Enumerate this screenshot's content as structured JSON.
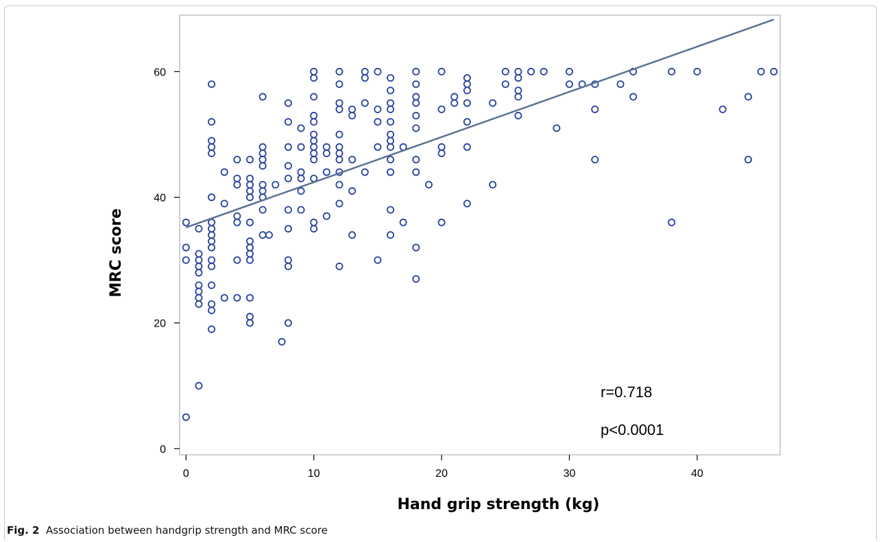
{
  "caption": {
    "label": "Fig. 2",
    "text": "Association between handgrip strength and MRC score"
  },
  "colors": {
    "points": "#2540a0",
    "fit_line": "#5a7194",
    "axis": "#000000",
    "frame": "#c0c0c0"
  },
  "chart_data": {
    "type": "scatter",
    "title": "",
    "xlabel": "Hand grip strength (kg)",
    "ylabel": "MRC score",
    "xlim": [
      -0.5,
      46.5
    ],
    "ylim": [
      -1,
      69
    ],
    "xticks": [
      0,
      10,
      20,
      30,
      40
    ],
    "yticks": [
      0,
      20,
      40,
      60
    ],
    "grid": false,
    "annotations": [
      "r=0.718",
      "p<0.0001"
    ],
    "fit_line": {
      "x": [
        0,
        46
      ],
      "y": [
        35.2,
        68.3
      ]
    },
    "points": [
      [
        0,
        36
      ],
      [
        0,
        32
      ],
      [
        0,
        30
      ],
      [
        0,
        5
      ],
      [
        1,
        35
      ],
      [
        1,
        31
      ],
      [
        1,
        30
      ],
      [
        1,
        29
      ],
      [
        1,
        28
      ],
      [
        1,
        26
      ],
      [
        1,
        25
      ],
      [
        1,
        24
      ],
      [
        1,
        23
      ],
      [
        1,
        10
      ],
      [
        2,
        58
      ],
      [
        2,
        52
      ],
      [
        2,
        49
      ],
      [
        2,
        48
      ],
      [
        2,
        47
      ],
      [
        2,
        40
      ],
      [
        2,
        36
      ],
      [
        2,
        35
      ],
      [
        2,
        34
      ],
      [
        2,
        33
      ],
      [
        2,
        32
      ],
      [
        2,
        30
      ],
      [
        2,
        29
      ],
      [
        2,
        26
      ],
      [
        2,
        23
      ],
      [
        2,
        22
      ],
      [
        2,
        19
      ],
      [
        3,
        44
      ],
      [
        3,
        39
      ],
      [
        3,
        24
      ],
      [
        4,
        46
      ],
      [
        4,
        43
      ],
      [
        4,
        42
      ],
      [
        4,
        37
      ],
      [
        4,
        36
      ],
      [
        4,
        30
      ],
      [
        4,
        24
      ],
      [
        5,
        46
      ],
      [
        5,
        43
      ],
      [
        5,
        42
      ],
      [
        5,
        41
      ],
      [
        5,
        40
      ],
      [
        5,
        36
      ],
      [
        5,
        33
      ],
      [
        5,
        32
      ],
      [
        5,
        31
      ],
      [
        5,
        30
      ],
      [
        5,
        24
      ],
      [
        5,
        21
      ],
      [
        5,
        20
      ],
      [
        6,
        56
      ],
      [
        6,
        48
      ],
      [
        6,
        47
      ],
      [
        6,
        46
      ],
      [
        6,
        45
      ],
      [
        6,
        42
      ],
      [
        6,
        41
      ],
      [
        6,
        40
      ],
      [
        6,
        38
      ],
      [
        6,
        34
      ],
      [
        6.5,
        34
      ],
      [
        7,
        42
      ],
      [
        7.5,
        17
      ],
      [
        8,
        55
      ],
      [
        8,
        52
      ],
      [
        8,
        48
      ],
      [
        8,
        45
      ],
      [
        8,
        43
      ],
      [
        8,
        38
      ],
      [
        8,
        35
      ],
      [
        8,
        30
      ],
      [
        8,
        29
      ],
      [
        8,
        20
      ],
      [
        9,
        51
      ],
      [
        9,
        48
      ],
      [
        9,
        44
      ],
      [
        9,
        43
      ],
      [
        9,
        41
      ],
      [
        9,
        38
      ],
      [
        10,
        60
      ],
      [
        10,
        59
      ],
      [
        10,
        56
      ],
      [
        10,
        53
      ],
      [
        10,
        52
      ],
      [
        10,
        50
      ],
      [
        10,
        49
      ],
      [
        10,
        48
      ],
      [
        10,
        47
      ],
      [
        10,
        46
      ],
      [
        10,
        43
      ],
      [
        10,
        36
      ],
      [
        10,
        35
      ],
      [
        11,
        48
      ],
      [
        11,
        47
      ],
      [
        11,
        44
      ],
      [
        11,
        37
      ],
      [
        12,
        60
      ],
      [
        12,
        58
      ],
      [
        12,
        55
      ],
      [
        12,
        54
      ],
      [
        12,
        50
      ],
      [
        12,
        48
      ],
      [
        12,
        47
      ],
      [
        12,
        46
      ],
      [
        12,
        44
      ],
      [
        12,
        42
      ],
      [
        12,
        39
      ],
      [
        12,
        29
      ],
      [
        13,
        54
      ],
      [
        13,
        53
      ],
      [
        13,
        46
      ],
      [
        13,
        41
      ],
      [
        13,
        34
      ],
      [
        14,
        60
      ],
      [
        14,
        59
      ],
      [
        14,
        55
      ],
      [
        14,
        44
      ],
      [
        15,
        60
      ],
      [
        15,
        54
      ],
      [
        15,
        52
      ],
      [
        15,
        48
      ],
      [
        15,
        30
      ],
      [
        16,
        59
      ],
      [
        16,
        57
      ],
      [
        16,
        55
      ],
      [
        16,
        54
      ],
      [
        16,
        52
      ],
      [
        16,
        50
      ],
      [
        16,
        49
      ],
      [
        16,
        48
      ],
      [
        16,
        46
      ],
      [
        16,
        44
      ],
      [
        16,
        38
      ],
      [
        16,
        34
      ],
      [
        17,
        48
      ],
      [
        17,
        36
      ],
      [
        18,
        60
      ],
      [
        18,
        58
      ],
      [
        18,
        56
      ],
      [
        18,
        55
      ],
      [
        18,
        53
      ],
      [
        18,
        51
      ],
      [
        18,
        46
      ],
      [
        18,
        44
      ],
      [
        18,
        32
      ],
      [
        18,
        27
      ],
      [
        19,
        42
      ],
      [
        20,
        60
      ],
      [
        20,
        54
      ],
      [
        20,
        48
      ],
      [
        20,
        47
      ],
      [
        20,
        36
      ],
      [
        21,
        56
      ],
      [
        21,
        55
      ],
      [
        22,
        59
      ],
      [
        22,
        58
      ],
      [
        22,
        57
      ],
      [
        22,
        55
      ],
      [
        22,
        52
      ],
      [
        22,
        48
      ],
      [
        22,
        39
      ],
      [
        24,
        55
      ],
      [
        24,
        42
      ],
      [
        25,
        60
      ],
      [
        25,
        58
      ],
      [
        26,
        60
      ],
      [
        26,
        59
      ],
      [
        26,
        57
      ],
      [
        26,
        56
      ],
      [
        26,
        53
      ],
      [
        27,
        60
      ],
      [
        28,
        60
      ],
      [
        29,
        51
      ],
      [
        30,
        60
      ],
      [
        30,
        58
      ],
      [
        31,
        58
      ],
      [
        32,
        58
      ],
      [
        32,
        54
      ],
      [
        32,
        46
      ],
      [
        34,
        58
      ],
      [
        35,
        60
      ],
      [
        35,
        56
      ],
      [
        38,
        60
      ],
      [
        38,
        36
      ],
      [
        40,
        60
      ],
      [
        42,
        54
      ],
      [
        44,
        56
      ],
      [
        44,
        46
      ],
      [
        45,
        60
      ],
      [
        46,
        60
      ]
    ]
  }
}
